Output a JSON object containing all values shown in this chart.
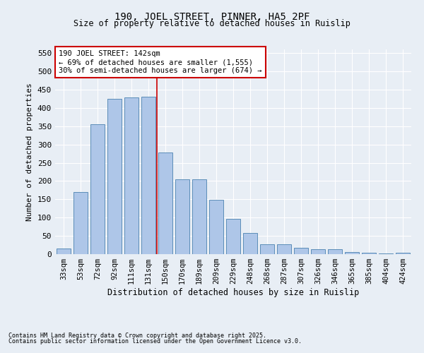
{
  "title1": "190, JOEL STREET, PINNER, HA5 2PF",
  "title2": "Size of property relative to detached houses in Ruislip",
  "xlabel": "Distribution of detached houses by size in Ruislip",
  "ylabel": "Number of detached properties",
  "categories": [
    "33sqm",
    "53sqm",
    "72sqm",
    "92sqm",
    "111sqm",
    "131sqm",
    "150sqm",
    "170sqm",
    "189sqm",
    "209sqm",
    "229sqm",
    "248sqm",
    "268sqm",
    "287sqm",
    "307sqm",
    "326sqm",
    "346sqm",
    "365sqm",
    "385sqm",
    "404sqm",
    "424sqm"
  ],
  "values": [
    15,
    170,
    355,
    425,
    428,
    430,
    278,
    205,
    205,
    148,
    97,
    57,
    28,
    28,
    18,
    13,
    13,
    6,
    4,
    2,
    4
  ],
  "bar_color": "#aec6e8",
  "bar_edge_color": "#5b8db8",
  "vline_x": 5.5,
  "vline_color": "#cc0000",
  "annotation_title": "190 JOEL STREET: 142sqm",
  "annotation_line2": "← 69% of detached houses are smaller (1,555)",
  "annotation_line3": "30% of semi-detached houses are larger (674) →",
  "annotation_box_color": "#ffffff",
  "annotation_box_edge": "#cc0000",
  "ylim": [
    0,
    560
  ],
  "yticks": [
    0,
    50,
    100,
    150,
    200,
    250,
    300,
    350,
    400,
    450,
    500,
    550
  ],
  "footnote1": "Contains HM Land Registry data © Crown copyright and database right 2025.",
  "footnote2": "Contains public sector information licensed under the Open Government Licence v3.0.",
  "bg_color": "#e8eef5"
}
